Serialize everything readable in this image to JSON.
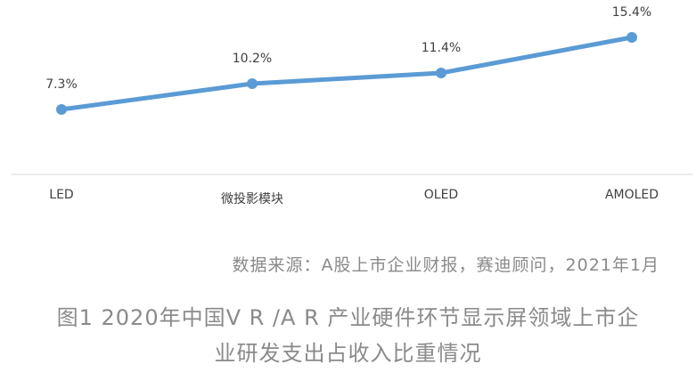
{
  "chart_data": {
    "type": "line",
    "categories": [
      "LED",
      "微投影模块",
      "OLED",
      "AMOLED"
    ],
    "values": [
      7.3,
      10.2,
      11.4,
      15.4
    ],
    "data_labels": [
      "7.3%",
      "10.2%",
      "11.4%",
      "15.4%"
    ],
    "ylim": [
      0,
      16
    ],
    "grid": false,
    "legend": "none",
    "line_color": "#5B9BD5"
  },
  "source_note": "数据来源：A股上市企业财报，赛迪顾问，2021年1月",
  "caption": {
    "line1": "图1 2020年中国V R /A R 产业硬件环节显示屏领域上市企",
    "line2": "业研发支出占收入比重情况"
  }
}
